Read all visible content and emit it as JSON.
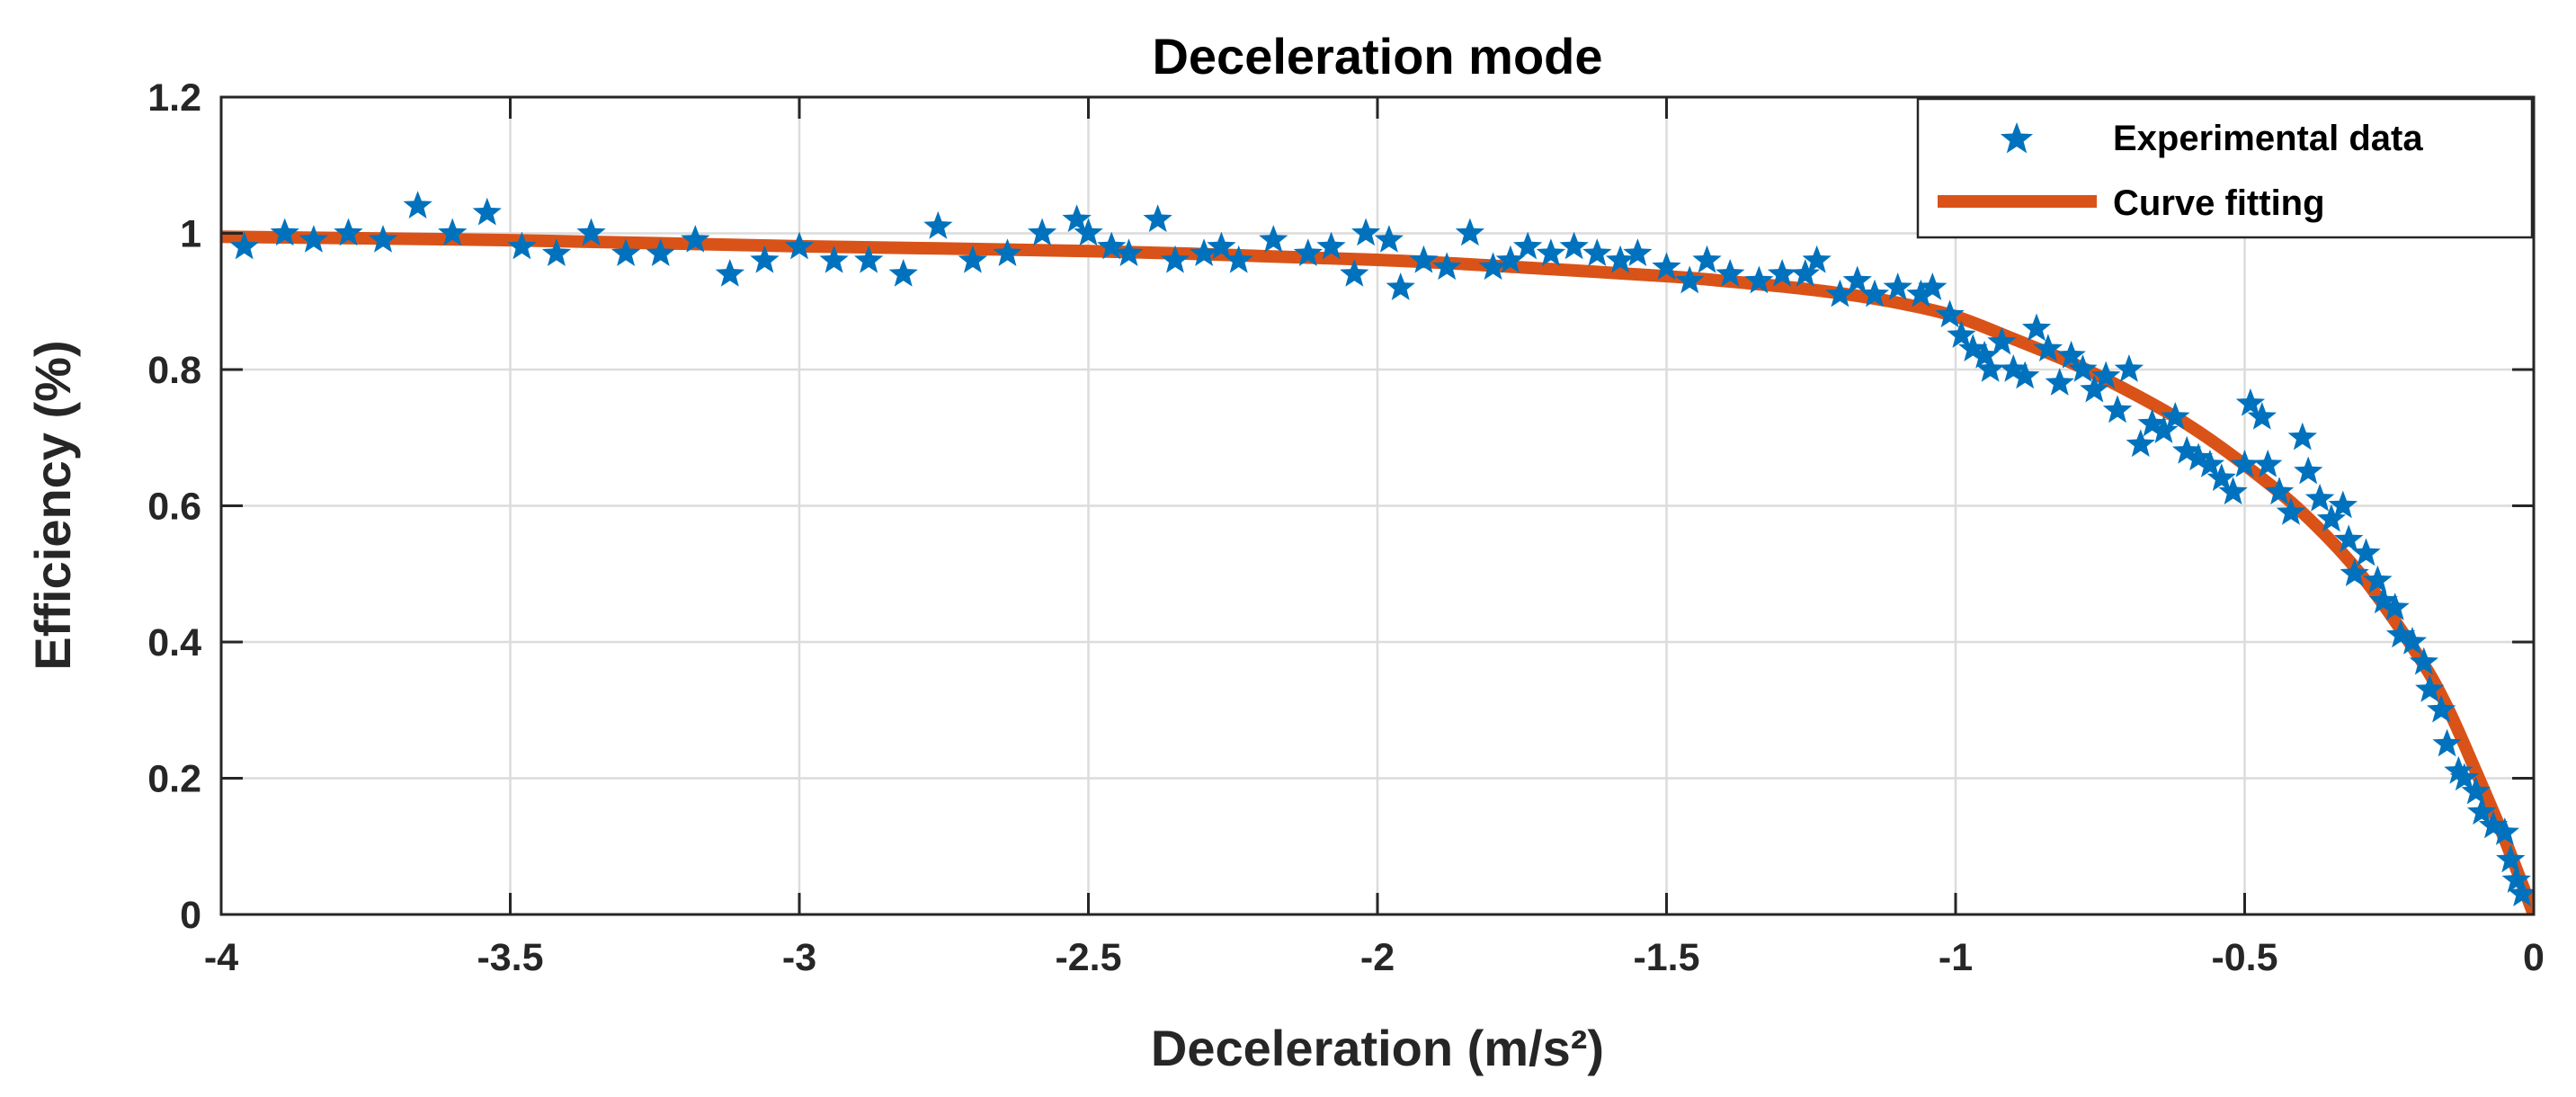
{
  "colors": {
    "points": "#0072BD",
    "fit": "#D95319",
    "grid": "#dcdcdc",
    "axis": "#262626"
  },
  "chart_data": {
    "type": "scatter",
    "title": "Deceleration mode",
    "xlabel": "Deceleration (m/s²)",
    "ylabel": "Efficiency (%)",
    "xlim": [
      -4,
      0
    ],
    "ylim": [
      0,
      1.2
    ],
    "grid": true,
    "legend_position": "top-right",
    "xticks": [
      -4,
      -3.5,
      -3,
      -2.5,
      -2,
      -1.5,
      -1,
      -0.5,
      0
    ],
    "xtick_labels": [
      "-4",
      "-3.5",
      "-3",
      "-2.5",
      "-2",
      "-1.5",
      "-1",
      "-0.5",
      "0"
    ],
    "yticks": [
      0,
      0.2,
      0.4,
      0.6,
      0.8,
      1,
      1.2
    ],
    "ytick_labels": [
      "0",
      "0.2",
      "0.4",
      "0.6",
      "0.8",
      "1",
      "1.2"
    ],
    "series": [
      {
        "name": "Experimental data",
        "kind": "markers",
        "marker": "star",
        "points": [
          [
            -3.96,
            0.98
          ],
          [
            -3.89,
            1.0
          ],
          [
            -3.84,
            0.99
          ],
          [
            -3.78,
            1.0
          ],
          [
            -3.72,
            0.99
          ],
          [
            -3.66,
            1.04
          ],
          [
            -3.6,
            1.0
          ],
          [
            -3.54,
            1.03
          ],
          [
            -3.48,
            0.98
          ],
          [
            -3.42,
            0.97
          ],
          [
            -3.36,
            1.0
          ],
          [
            -3.3,
            0.97
          ],
          [
            -3.24,
            0.97
          ],
          [
            -3.18,
            0.99
          ],
          [
            -3.12,
            0.94
          ],
          [
            -3.06,
            0.96
          ],
          [
            -3.0,
            0.98
          ],
          [
            -2.94,
            0.96
          ],
          [
            -2.88,
            0.96
          ],
          [
            -2.82,
            0.94
          ],
          [
            -2.76,
            1.01
          ],
          [
            -2.7,
            0.96
          ],
          [
            -2.64,
            0.97
          ],
          [
            -2.58,
            1.0
          ],
          [
            -2.52,
            1.02
          ],
          [
            -2.5,
            1.0
          ],
          [
            -2.46,
            0.98
          ],
          [
            -2.43,
            0.97
          ],
          [
            -2.38,
            1.02
          ],
          [
            -2.35,
            0.96
          ],
          [
            -2.3,
            0.97
          ],
          [
            -2.27,
            0.98
          ],
          [
            -2.24,
            0.96
          ],
          [
            -2.18,
            0.99
          ],
          [
            -2.12,
            0.97
          ],
          [
            -2.08,
            0.98
          ],
          [
            -2.04,
            0.94
          ],
          [
            -2.02,
            1.0
          ],
          [
            -1.98,
            0.99
          ],
          [
            -1.96,
            0.92
          ],
          [
            -1.92,
            0.96
          ],
          [
            -1.88,
            0.95
          ],
          [
            -1.84,
            1.0
          ],
          [
            -1.8,
            0.95
          ],
          [
            -1.77,
            0.96
          ],
          [
            -1.74,
            0.98
          ],
          [
            -1.7,
            0.97
          ],
          [
            -1.66,
            0.98
          ],
          [
            -1.62,
            0.97
          ],
          [
            -1.58,
            0.96
          ],
          [
            -1.55,
            0.97
          ],
          [
            -1.5,
            0.95
          ],
          [
            -1.46,
            0.93
          ],
          [
            -1.43,
            0.96
          ],
          [
            -1.39,
            0.94
          ],
          [
            -1.34,
            0.93
          ],
          [
            -1.3,
            0.94
          ],
          [
            -1.26,
            0.94
          ],
          [
            -1.24,
            0.96
          ],
          [
            -1.2,
            0.91
          ],
          [
            -1.17,
            0.93
          ],
          [
            -1.14,
            0.91
          ],
          [
            -1.1,
            0.92
          ],
          [
            -1.06,
            0.91
          ],
          [
            -1.04,
            0.92
          ],
          [
            -1.01,
            0.88
          ],
          [
            -0.99,
            0.85
          ],
          [
            -0.97,
            0.83
          ],
          [
            -0.95,
            0.82
          ],
          [
            -0.94,
            0.8
          ],
          [
            -0.92,
            0.84
          ],
          [
            -0.9,
            0.8
          ],
          [
            -0.88,
            0.79
          ],
          [
            -0.86,
            0.86
          ],
          [
            -0.84,
            0.83
          ],
          [
            -0.82,
            0.78
          ],
          [
            -0.8,
            0.82
          ],
          [
            -0.78,
            0.8
          ],
          [
            -0.76,
            0.77
          ],
          [
            -0.74,
            0.79
          ],
          [
            -0.72,
            0.74
          ],
          [
            -0.7,
            0.8
          ],
          [
            -0.68,
            0.69
          ],
          [
            -0.66,
            0.72
          ],
          [
            -0.64,
            0.71
          ],
          [
            -0.62,
            0.73
          ],
          [
            -0.6,
            0.68
          ],
          [
            -0.58,
            0.67
          ],
          [
            -0.56,
            0.66
          ],
          [
            -0.54,
            0.64
          ],
          [
            -0.52,
            0.62
          ],
          [
            -0.5,
            0.66
          ],
          [
            -0.49,
            0.75
          ],
          [
            -0.47,
            0.73
          ],
          [
            -0.46,
            0.66
          ],
          [
            -0.44,
            0.62
          ],
          [
            -0.42,
            0.59
          ],
          [
            -0.4,
            0.7
          ],
          [
            -0.39,
            0.65
          ],
          [
            -0.37,
            0.61
          ],
          [
            -0.35,
            0.58
          ],
          [
            -0.33,
            0.6
          ],
          [
            -0.32,
            0.55
          ],
          [
            -0.31,
            0.5
          ],
          [
            -0.29,
            0.53
          ],
          [
            -0.27,
            0.49
          ],
          [
            -0.26,
            0.46
          ],
          [
            -0.24,
            0.45
          ],
          [
            -0.23,
            0.41
          ],
          [
            -0.21,
            0.4
          ],
          [
            -0.19,
            0.37
          ],
          [
            -0.18,
            0.33
          ],
          [
            -0.16,
            0.3
          ],
          [
            -0.15,
            0.25
          ],
          [
            -0.13,
            0.21
          ],
          [
            -0.12,
            0.2
          ],
          [
            -0.1,
            0.18
          ],
          [
            -0.09,
            0.15
          ],
          [
            -0.07,
            0.13
          ],
          [
            -0.05,
            0.12
          ],
          [
            -0.04,
            0.08
          ],
          [
            -0.03,
            0.05
          ],
          [
            -0.02,
            0.03
          ]
        ]
      },
      {
        "name": "Curve fitting",
        "kind": "line",
        "points": [
          [
            -4.0,
            0.995
          ],
          [
            -3.5,
            0.99
          ],
          [
            -3.0,
            0.981
          ],
          [
            -2.5,
            0.974
          ],
          [
            -2.0,
            0.961
          ],
          [
            -1.75,
            0.95
          ],
          [
            -1.5,
            0.937
          ],
          [
            -1.4,
            0.93
          ],
          [
            -1.3,
            0.922
          ],
          [
            -1.2,
            0.912
          ],
          [
            -1.1,
            0.898
          ],
          [
            -1.0,
            0.878
          ],
          [
            -0.9,
            0.845
          ],
          [
            -0.8,
            0.81
          ],
          [
            -0.7,
            0.768
          ],
          [
            -0.6,
            0.72
          ],
          [
            -0.5,
            0.66
          ],
          [
            -0.4,
            0.59
          ],
          [
            -0.3,
            0.5
          ],
          [
            -0.2,
            0.38
          ],
          [
            -0.15,
            0.305
          ],
          [
            -0.1,
            0.21
          ],
          [
            -0.05,
            0.11
          ],
          [
            0.0,
            0.0
          ]
        ]
      }
    ]
  }
}
